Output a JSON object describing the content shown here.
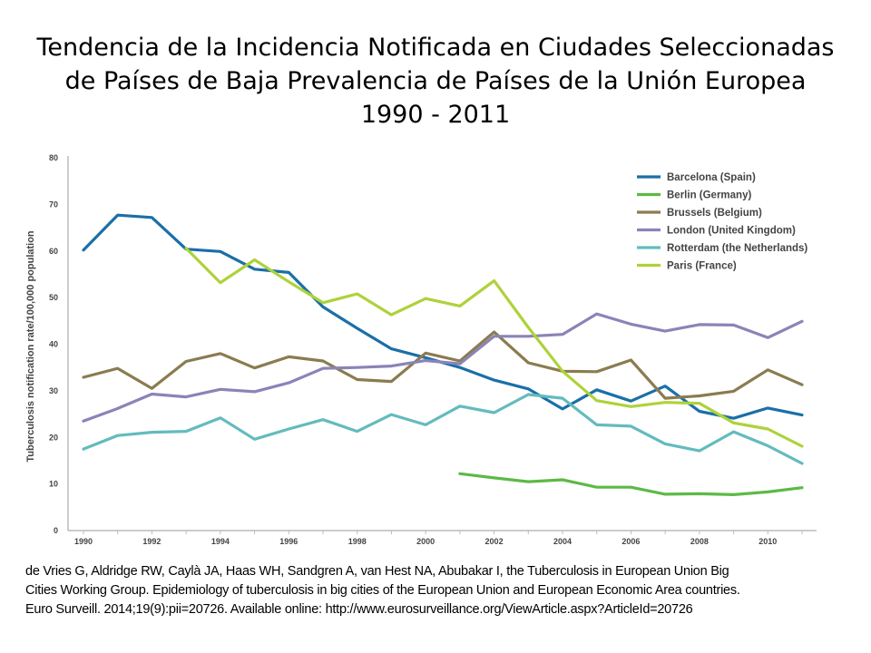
{
  "slide": {
    "title_line1": "Tendencia de la Incidencia Notificada en Ciudades Seleccionadas",
    "title_line2": "de Países de Baja Prevalencia de Países de la Unión Europea",
    "title_line3": "1990 - 2011",
    "citation_line1": "de Vries G, Aldridge RW, Caylà JA, Haas WH, Sandgren A, van Hest NA, Abubakar I, the Tuberculosis in European Union Big",
    "citation_line2": "Cities Working Group. Epidemiology of tuberculosis in big cities of the European Union and European Economic Area countries.",
    "citation_line3": "Euro Surveill. 2014;19(9):pii=20726. Available online:  http://www.eurosurveillance.org/ViewArticle.aspx?ArticleId=20726"
  },
  "chart_data": {
    "type": "line",
    "title": "",
    "xlabel": "",
    "ylabel": "Tuberculosis notification rate/100,000 population",
    "xlim": [
      1990,
      2011
    ],
    "ylim": [
      0,
      80
    ],
    "x_ticks": [
      1990,
      1992,
      1994,
      1996,
      1998,
      2000,
      2002,
      2004,
      2006,
      2008,
      2010
    ],
    "y_ticks": [
      0,
      10,
      20,
      30,
      40,
      50,
      60,
      70,
      80
    ],
    "grid": false,
    "legend_position": "top-right",
    "x": [
      1990,
      1991,
      1992,
      1993,
      1994,
      1995,
      1996,
      1997,
      1998,
      1999,
      2000,
      2001,
      2002,
      2003,
      2004,
      2005,
      2006,
      2007,
      2008,
      2009,
      2010,
      2011
    ],
    "series": [
      {
        "name": "Barcelona (Spain)",
        "color": "#1a6fa8",
        "values": [
          60.2,
          67.7,
          67.2,
          60.4,
          59.9,
          56.1,
          55.4,
          48.0,
          43.4,
          39.0,
          37.1,
          35.0,
          32.3,
          30.4,
          26.1,
          30.2,
          27.8,
          31.0,
          25.6,
          24.1,
          26.3,
          24.8
        ]
      },
      {
        "name": "Berlin (Germany)",
        "color": "#5db946",
        "values": [
          null,
          null,
          null,
          null,
          null,
          null,
          null,
          null,
          null,
          null,
          null,
          12.2,
          11.3,
          10.5,
          10.9,
          9.3,
          9.3,
          7.8,
          7.9,
          7.7,
          8.3,
          9.2
        ]
      },
      {
        "name": "Brussels (Belgium)",
        "color": "#8b7b4f",
        "values": [
          32.9,
          34.8,
          30.5,
          36.3,
          38.0,
          34.9,
          37.3,
          36.4,
          32.4,
          32.0,
          38.1,
          36.4,
          42.6,
          36.0,
          34.2,
          34.1,
          36.6,
          28.4,
          28.9,
          29.9,
          34.5,
          31.3
        ]
      },
      {
        "name": "London (United Kingdom)",
        "color": "#8b83b8",
        "values": [
          23.5,
          26.2,
          29.3,
          28.7,
          30.3,
          29.8,
          31.7,
          34.8,
          35.0,
          35.3,
          36.5,
          35.8,
          41.7,
          41.7,
          42.1,
          46.5,
          44.3,
          42.8,
          44.2,
          44.1,
          41.4,
          44.9
        ]
      },
      {
        "name": "Rotterdam (the Netherlands)",
        "color": "#63bbbd",
        "values": [
          17.5,
          20.4,
          21.1,
          21.3,
          24.2,
          19.6,
          21.8,
          23.8,
          21.3,
          24.9,
          22.7,
          26.7,
          25.3,
          29.2,
          28.4,
          22.7,
          22.4,
          18.6,
          17.1,
          21.2,
          18.2,
          14.4
        ]
      },
      {
        "name": "Paris (France)",
        "color": "#aed23a",
        "values": [
          null,
          null,
          null,
          60.6,
          53.2,
          58.1,
          53.4,
          48.9,
          50.8,
          46.3,
          49.8,
          48.2,
          53.6,
          43.6,
          34.2,
          27.9,
          26.6,
          27.5,
          27.3,
          23.1,
          21.8,
          18.1
        ]
      }
    ]
  }
}
